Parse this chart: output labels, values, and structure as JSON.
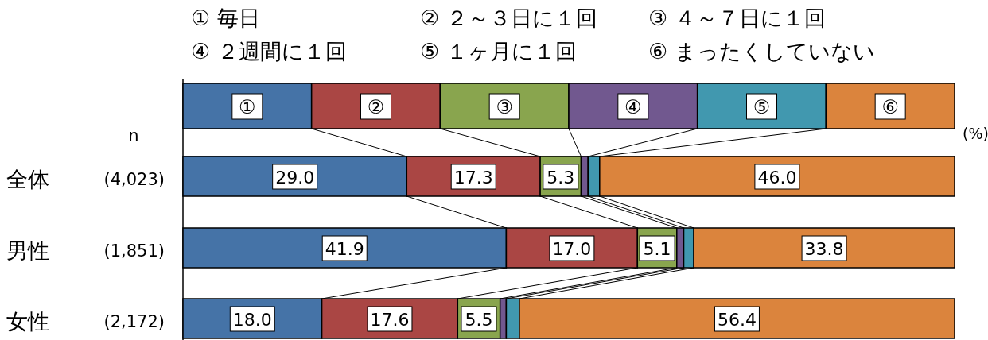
{
  "chart_data": {
    "type": "bar",
    "orientation": "horizontal",
    "stacked": true,
    "legend": "top",
    "tick_labels": "y",
    "xlim": [
      0,
      100
    ],
    "xlabel": "(%)",
    "categories": [
      "全体",
      "男性",
      "女性"
    ],
    "series": [
      {
        "name": "①",
        "color": "#4573a7",
        "values": [
          29.0,
          41.9,
          18.0
        ],
        "value_labels": [
          "29.0",
          "41.9",
          "18.0"
        ]
      },
      {
        "name": "②",
        "color": "#aa4644",
        "values": [
          17.3,
          17.0,
          17.6
        ],
        "value_labels": [
          "17.3",
          "17.0",
          "17.6"
        ]
      },
      {
        "name": "③",
        "color": "#89a54e",
        "values": [
          5.3,
          5.1,
          5.5
        ],
        "value_labels": [
          "5.3",
          "5.1",
          "5.5"
        ]
      },
      {
        "name": "④",
        "color": "#71588f",
        "values": [
          0.9,
          0.9,
          0.8
        ],
        "value_labels": [
          null,
          null,
          null
        ]
      },
      {
        "name": "⑤",
        "color": "#4198af",
        "values": [
          1.5,
          1.3,
          1.7
        ],
        "value_labels": [
          null,
          null,
          null
        ]
      },
      {
        "name": "⑥",
        "color": "#db843d",
        "values": [
          46.0,
          33.8,
          56.4
        ],
        "value_labels": [
          "46.0",
          "33.8",
          "56.4"
        ]
      }
    ],
    "annotations": [
      "① 毎日",
      "② ２～３日に１回",
      "③ ４～７日に１回",
      "④ ２週間に１回",
      "⑤ １ヶ月に１回",
      "⑥ まったくしていない",
      "n",
      "(4,023)",
      "(1,851)",
      "(2,172)"
    ]
  }
}
